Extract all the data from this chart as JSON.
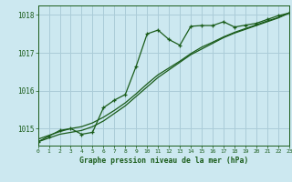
{
  "title": "Graphe pression niveau de la mer (hPa)",
  "background_color": "#cce8f0",
  "grid_color": "#aaccd8",
  "line_color": "#1a5c1a",
  "text_color": "#1a5c1a",
  "x_min": 0,
  "x_max": 23,
  "y_min": 1014.55,
  "y_max": 1018.25,
  "yticks": [
    1015,
    1016,
    1017,
    1018
  ],
  "xticks": [
    0,
    1,
    2,
    3,
    4,
    5,
    6,
    7,
    8,
    9,
    10,
    11,
    12,
    13,
    14,
    15,
    16,
    17,
    18,
    19,
    20,
    21,
    22,
    23
  ],
  "hourly_x": [
    0,
    1,
    2,
    3,
    4,
    5,
    6,
    7,
    8,
    9,
    10,
    11,
    12,
    13,
    14,
    15,
    16,
    17,
    18,
    19,
    20,
    21,
    22,
    23
  ],
  "hourly_y": [
    1014.65,
    1014.8,
    1014.95,
    1015.0,
    1014.85,
    1014.9,
    1015.55,
    1015.75,
    1015.9,
    1016.65,
    1017.5,
    1017.6,
    1017.35,
    1017.2,
    1017.7,
    1017.72,
    1017.72,
    1017.82,
    1017.68,
    1017.73,
    1017.78,
    1017.88,
    1017.98,
    1018.05
  ],
  "smooth1_x": [
    0,
    1,
    2,
    3,
    4,
    5,
    6,
    7,
    8,
    9,
    10,
    11,
    12,
    13,
    14,
    15,
    16,
    17,
    18,
    19,
    20,
    21,
    22,
    23
  ],
  "smooth1_y": [
    1014.65,
    1014.75,
    1014.85,
    1014.9,
    1014.95,
    1015.05,
    1015.2,
    1015.4,
    1015.6,
    1015.85,
    1016.1,
    1016.35,
    1016.55,
    1016.75,
    1016.95,
    1017.1,
    1017.25,
    1017.4,
    1017.52,
    1017.62,
    1017.72,
    1017.82,
    1017.92,
    1018.05
  ],
  "smooth2_x": [
    0,
    1,
    2,
    3,
    4,
    5,
    6,
    7,
    8,
    9,
    10,
    11,
    12,
    13,
    14,
    15,
    16,
    17,
    18,
    19,
    20,
    21,
    22,
    23
  ],
  "smooth2_y": [
    1014.72,
    1014.82,
    1014.92,
    1015.0,
    1015.05,
    1015.15,
    1015.3,
    1015.48,
    1015.68,
    1015.92,
    1016.18,
    1016.42,
    1016.6,
    1016.78,
    1016.98,
    1017.15,
    1017.28,
    1017.42,
    1017.54,
    1017.64,
    1017.74,
    1017.84,
    1017.93,
    1018.05
  ]
}
